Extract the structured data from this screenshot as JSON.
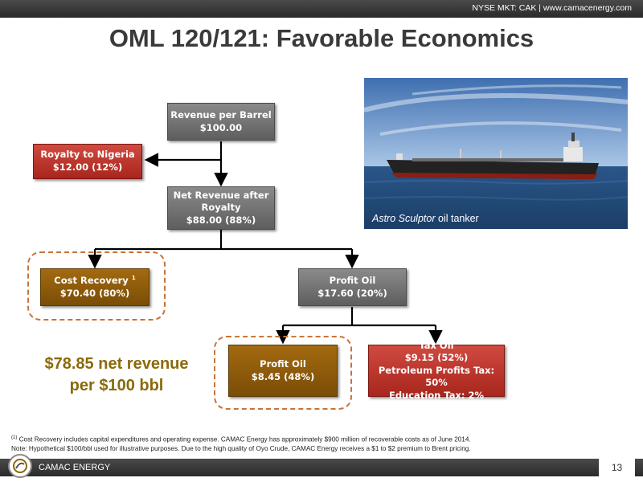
{
  "header": {
    "ticker": "NYSE MKT: CAK | www.camacenergy.com"
  },
  "title": "OML 120/121: Favorable Economics",
  "photo": {
    "caption_italic": "Astro Sculptor",
    "caption_rest": " oil tanker"
  },
  "boxes": {
    "revenue": {
      "line1": "Revenue per Barrel",
      "line2": "$100.00"
    },
    "royalty": {
      "line1": "Royalty to Nigeria",
      "line2": "$12.00 (12%)"
    },
    "net_revenue": {
      "line1": "Net Revenue after",
      "line2": "Royalty",
      "line3": "$88.00 (88%)"
    },
    "cost_recovery": {
      "line1": "Cost Recovery",
      "sup": "1",
      "line2": "$70.40 (80%)"
    },
    "profit_oil": {
      "line1": "Profit Oil",
      "line2": "$17.60 (20%)"
    },
    "profit_oil_contractor": {
      "line1": "Profit Oil",
      "line2": "$8.45 (48%)"
    },
    "tax_oil": {
      "line1": "Tax Oil",
      "line2": "$9.15 (52%)",
      "line3": "Petroleum Profits Tax: 50%",
      "line4": "Education Tax: 2%"
    }
  },
  "summary": {
    "line1": "$78.85 net revenue",
    "line2": "per $100 bbl"
  },
  "footnotes": {
    "marker": "(1)",
    "note1": " Cost Recovery includes capital expenditures and operating expense.  CAMAC Energy has approximately $900 million of recoverable costs as of June 2014.",
    "note2": "Note:  Hypothetical $100/bbl used for illustrative purposes.  Due to the high quality of Oyo Crude, CAMAC Energy receives a $1 to $2 premium to Brent pricing."
  },
  "footer": {
    "company": "CAMAC ENERGY",
    "page": "13"
  },
  "colors": {
    "gray_box": "#6e6e6e",
    "red_box": "#b83228",
    "brown_box": "#8b5a0a",
    "highlight_text": "#8a6a0a",
    "dashed_outline": "#c8733a"
  }
}
